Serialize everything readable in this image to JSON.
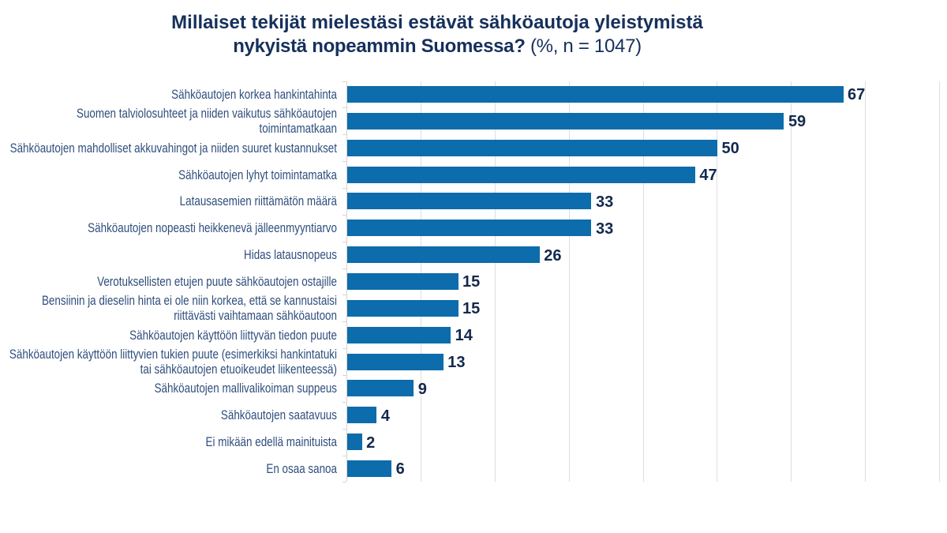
{
  "title": {
    "line1": "Millaiset tekijät mielestäsi estävät sähköautoja yleistymistä",
    "line2_bold": "nykyistä nopeammin Suomessa?",
    "line2_normal": " (%, n = 1047)"
  },
  "chart_data": {
    "type": "bar",
    "orientation": "horizontal",
    "title": "Millaiset tekijät mielestäsi estävät sähköautoja yleistymistä nykyistä nopeammin Suomessa? (%, n = 1047)",
    "categories": [
      "Sähköautojen korkea hankintahinta",
      "Suomen talviolosuhteet ja niiden vaikutus sähköautojen\ntoimintamatkaan",
      "Sähköautojen mahdolliset akkuvahingot ja niiden suuret kustannukset",
      "Sähköautojen lyhyt toimintamatka",
      "Latausasemien riittämätön määrä",
      "Sähköautojen nopeasti heikkenevä jälleenmyyntiarvo",
      "Hidas latausnopeus",
      "Verotuksellisten etujen puute sähköautojen ostajille",
      "Bensiinin ja dieselin hinta ei ole niin korkea, että se kannustaisi\nriittävästi vaihtamaan sähköautoon",
      "Sähköautojen käyttöön liittyvän tiedon puute",
      "Sähköautojen käyttöön liittyvien tukien puute (esimerkiksi hankintatuki\ntai sähköautojen etuoikeudet liikenteessä)",
      "Sähköautojen mallivalikoiman suppeus",
      "Sähköautojen saatavuus",
      "Ei mikään edellä mainituista",
      "En osaa sanoa"
    ],
    "values": [
      67,
      59,
      50,
      47,
      33,
      33,
      26,
      15,
      15,
      14,
      13,
      9,
      4,
      2,
      6
    ],
    "xlim": [
      0,
      80
    ],
    "grid_interval": 10,
    "grid": true,
    "legend": false,
    "colors": {
      "bar": "#0d6cab",
      "title": "#16305c",
      "value_label": "#13294d",
      "category_label": "#2f4e7c",
      "gridline": "#dedede",
      "axis": "#d4d4d4",
      "background": "#ffffff"
    }
  }
}
